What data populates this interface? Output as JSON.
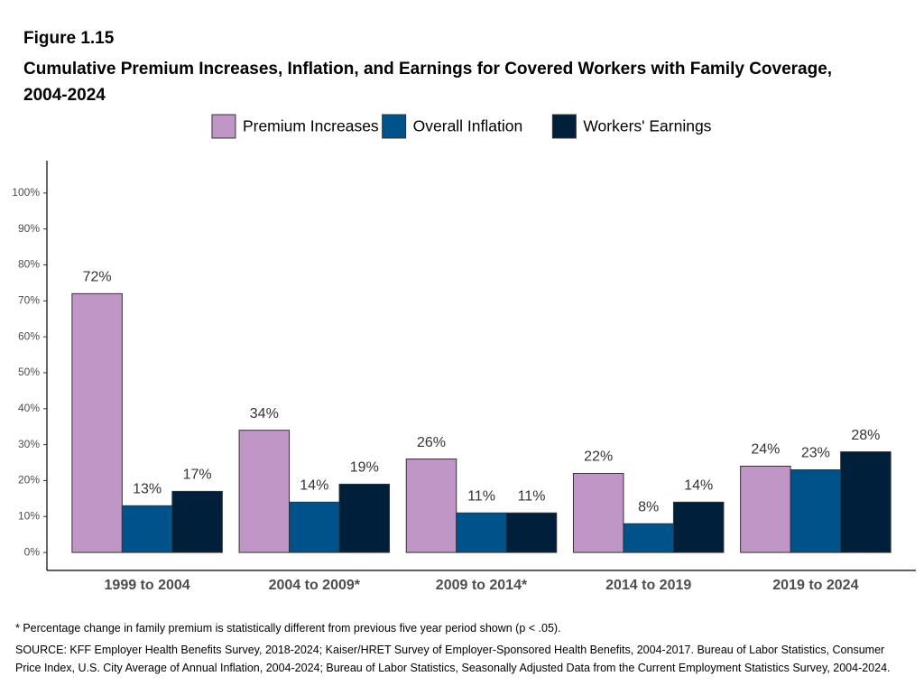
{
  "chart_data": {
    "type": "bar",
    "figure_label": "Figure 1.15",
    "title": "Cumulative Premium Increases, Inflation, and Earnings for Covered Workers with Family Coverage, 2004-2024",
    "categories": [
      "1999 to 2004",
      "2004 to 2009*",
      "2009 to 2014*",
      "2014 to 2019",
      "2019 to 2024"
    ],
    "series": [
      {
        "name": "Premium Increases",
        "color": "#bf96c5",
        "values": [
          72,
          34,
          26,
          22,
          24
        ],
        "value_labels": [
          "72%",
          "34%",
          "26%",
          "22%",
          "24%"
        ]
      },
      {
        "name": "Overall Inflation",
        "color": "#00528a",
        "values": [
          13,
          14,
          11,
          8,
          23
        ],
        "value_labels": [
          "13%",
          "14%",
          "11%",
          "8%",
          "23%"
        ]
      },
      {
        "name": "Workers' Earnings",
        "color": "#001f3a",
        "values": [
          17,
          19,
          11,
          14,
          28
        ],
        "value_labels": [
          "17%",
          "19%",
          "11%",
          "14%",
          "28%"
        ]
      }
    ],
    "ylim": [
      -5,
      109
    ],
    "yticks": [
      {
        "value": 0,
        "label": "0%"
      },
      {
        "value": 10,
        "label": "10%"
      },
      {
        "value": 20,
        "label": "20%"
      },
      {
        "value": 30,
        "label": "30%"
      },
      {
        "value": 40,
        "label": "40%"
      },
      {
        "value": 50,
        "label": "50%"
      },
      {
        "value": 60,
        "label": "60%"
      },
      {
        "value": 70,
        "label": "70%"
      },
      {
        "value": 80,
        "label": "80%"
      },
      {
        "value": 90,
        "label": "90%"
      },
      {
        "value": 100,
        "label": "100%"
      }
    ],
    "grid": false,
    "legend": "top",
    "note": "* Percentage change in family premium is statistically different from previous five year period shown (p < .05).",
    "source": "SOURCE: KFF Employer Health Benefits Survey, 2018-2024; Kaiser/HRET Survey of Employer-Sponsored Health Benefits, 2004-2017. Bureau of Labor Statistics, Consumer Price Index, U.S. City Average of Annual Inflation, 2004-2024; Bureau of Labor Statistics, Seasonally Adjusted Data from the Current Employment Statistics Survey, 2004-2024."
  }
}
